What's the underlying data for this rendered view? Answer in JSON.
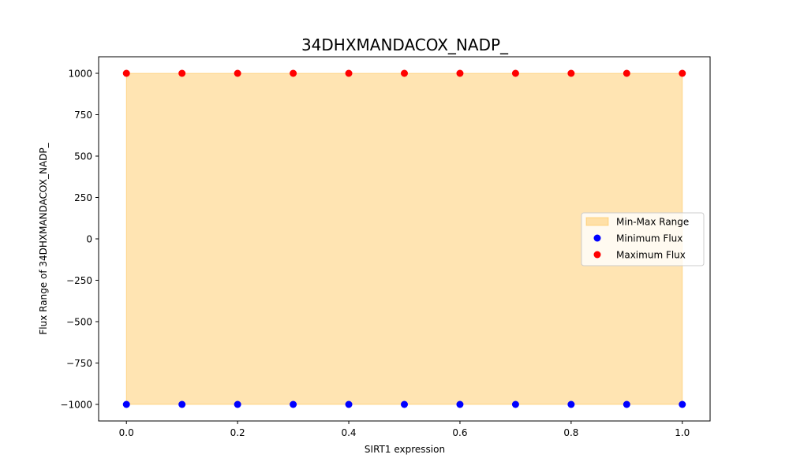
{
  "chart_data": {
    "type": "scatter",
    "title": "34DHXMANDACOX_NADP_",
    "xlabel": "SIRT1 expression",
    "ylabel": "Flux Range of 34DHXMANDACOX_NADP_",
    "xlim": [
      -0.05,
      1.05
    ],
    "ylim": [
      -1100,
      1100
    ],
    "x_ticks": [
      0.0,
      0.2,
      0.4,
      0.6,
      0.8,
      1.0
    ],
    "x_tick_labels": [
      "0.0",
      "0.2",
      "0.4",
      "0.6",
      "0.8",
      "1.0"
    ],
    "y_ticks": [
      1000,
      750,
      500,
      250,
      0,
      -250,
      -500,
      -750,
      -1000
    ],
    "y_tick_labels": [
      "1000",
      "750",
      "500",
      "250",
      "0",
      "−250",
      "−500",
      "−750",
      "−1000"
    ],
    "grid": false,
    "legend_position": "center-right",
    "x": [
      0.0,
      0.1,
      0.2,
      0.3,
      0.4,
      0.5,
      0.6,
      0.7,
      0.8,
      0.9,
      1.0
    ],
    "series": [
      {
        "name": "Min-Max Range",
        "kind": "fill_between",
        "color": "#ffa500",
        "opacity": 0.3,
        "lower": [
          -1000,
          -1000,
          -1000,
          -1000,
          -1000,
          -1000,
          -1000,
          -1000,
          -1000,
          -1000,
          -1000
        ],
        "upper": [
          1000,
          1000,
          1000,
          1000,
          1000,
          1000,
          1000,
          1000,
          1000,
          1000,
          1000
        ]
      },
      {
        "name": "Minimum Flux",
        "kind": "scatter",
        "color": "#0000ff",
        "values": [
          -1000,
          -1000,
          -1000,
          -1000,
          -1000,
          -1000,
          -1000,
          -1000,
          -1000,
          -1000,
          -1000
        ]
      },
      {
        "name": "Maximum Flux",
        "kind": "scatter",
        "color": "#ff0000",
        "values": [
          1000,
          1000,
          1000,
          1000,
          1000,
          1000,
          1000,
          1000,
          1000,
          1000,
          1000
        ]
      }
    ]
  }
}
